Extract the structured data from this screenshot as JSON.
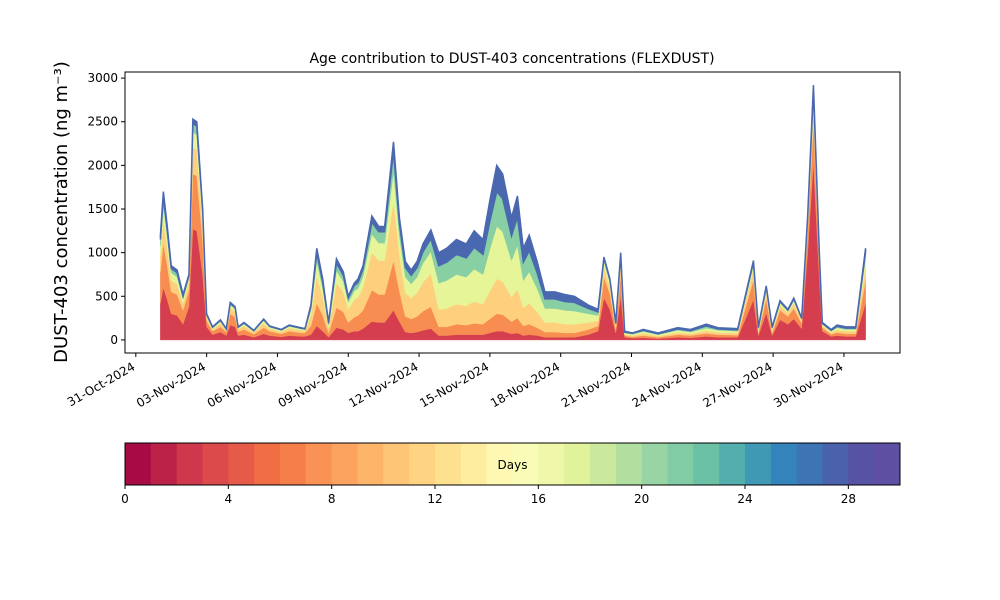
{
  "chart_data": {
    "type": "stacked_area",
    "title": "Age contribution to DUST-403 concentrations (FLEXDUST)",
    "y_label": "DUST-403 concentration (ng m⁻³)",
    "x": [
      "2024-11-01T01:00",
      "2024-11-01T04:00",
      "2024-11-01T08:00",
      "2024-11-01T12:00",
      "2024-11-01T18:00",
      "2024-11-02T00:00",
      "2024-11-02T06:00",
      "2024-11-02T10:00",
      "2024-11-02T14:00",
      "2024-11-02T20:00",
      "2024-11-03T00:00",
      "2024-11-03T06:00",
      "2024-11-03T14:00",
      "2024-11-03T20:00",
      "2024-11-04T00:00",
      "2024-11-04T05:00",
      "2024-11-04T08:00",
      "2024-11-04T14:00",
      "2024-11-05T00:00",
      "2024-11-05T10:00",
      "2024-11-05T16:00",
      "2024-11-06T04:00",
      "2024-11-06T12:00",
      "2024-11-07T00:00",
      "2024-11-07T04:00",
      "2024-11-07T10:00",
      "2024-11-07T16:00",
      "2024-11-07T22:00",
      "2024-11-08T04:00",
      "2024-11-08T12:00",
      "2024-11-08T19:00",
      "2024-11-09T00:00",
      "2024-11-09T06:00",
      "2024-11-09T10:00",
      "2024-11-09T15:00",
      "2024-11-10T00:00",
      "2024-11-10T07:00",
      "2024-11-10T13:00",
      "2024-11-10T22:00",
      "2024-11-11T04:00",
      "2024-11-11T10:00",
      "2024-11-11T16:00",
      "2024-11-11T22:00",
      "2024-11-12T04:00",
      "2024-11-12T12:00",
      "2024-11-12T20:00",
      "2024-11-13T04:00",
      "2024-11-13T14:00",
      "2024-11-14T00:00",
      "2024-11-14T08:00",
      "2024-11-14T17:00",
      "2024-11-15T00:00",
      "2024-11-15T07:00",
      "2024-11-15T13:00",
      "2024-11-15T22:00",
      "2024-11-16T04:00",
      "2024-11-16T10:00",
      "2024-11-16T16:00",
      "2024-11-17T00:00",
      "2024-11-17T08:00",
      "2024-11-17T18:00",
      "2024-11-18T04:00",
      "2024-11-18T14:00",
      "2024-11-19T04:00",
      "2024-11-19T14:00",
      "2024-11-19T20:00",
      "2024-11-20T02:00",
      "2024-11-20T08:00",
      "2024-11-20T13:00",
      "2024-11-20T17:00",
      "2024-11-21T01:00",
      "2024-11-21T12:00",
      "2024-11-22T03:00",
      "2024-11-22T23:00",
      "2024-11-23T12:00",
      "2024-11-24T04:00",
      "2024-11-24T16:00",
      "2024-11-25T12:00",
      "2024-11-26T04:00",
      "2024-11-26T09:00",
      "2024-11-26T17:00",
      "2024-11-26T23:00",
      "2024-11-27T07:00",
      "2024-11-27T15:00",
      "2024-11-27T21:00",
      "2024-11-28T05:00",
      "2024-11-28T11:00",
      "2024-11-28T17:00",
      "2024-11-28T23:00",
      "2024-11-29T02:00",
      "2024-11-29T11:00",
      "2024-11-29T17:00",
      "2024-11-30T02:00",
      "2024-11-30T12:00",
      "2024-11-30T22:00"
    ],
    "series": [
      {
        "color": "#d53e4f",
        "values": [
          420,
          600,
          460,
          300,
          280,
          180,
          380,
          1270,
          1250,
          750,
          150,
          60,
          90,
          50,
          170,
          150,
          50,
          60,
          30,
          70,
          50,
          35,
          50,
          40,
          40,
          60,
          160,
          100,
          30,
          140,
          120,
          80,
          100,
          100,
          130,
          210,
          200,
          200,
          340,
          210,
          90,
          80,
          90,
          110,
          130,
          50,
          50,
          60,
          60,
          60,
          60,
          80,
          100,
          100,
          70,
          80,
          50,
          60,
          50,
          30,
          30,
          30,
          30,
          60,
          100,
          480,
          350,
          80,
          500,
          30,
          20,
          25,
          15,
          30,
          25,
          40,
          30,
          30,
          460,
          50,
          310,
          50,
          230,
          180,
          240,
          130,
          980,
          2040,
          700,
          100,
          40,
          50,
          40,
          40,
          420
        ]
      },
      {
        "color": "#f88d52",
        "values": [
          360,
          510,
          390,
          250,
          240,
          160,
          190,
          630,
          630,
          380,
          70,
          40,
          60,
          40,
          130,
          110,
          45,
          60,
          35,
          70,
          50,
          35,
          50,
          40,
          40,
          100,
          260,
          180,
          50,
          230,
          200,
          120,
          160,
          180,
          210,
          360,
          320,
          320,
          570,
          350,
          180,
          160,
          180,
          220,
          250,
          100,
          100,
          120,
          110,
          130,
          120,
          160,
          200,
          190,
          140,
          170,
          110,
          120,
          90,
          60,
          60,
          50,
          50,
          60,
          60,
          240,
          180,
          40,
          250,
          20,
          15,
          25,
          15,
          30,
          25,
          35,
          30,
          25,
          230,
          30,
          160,
          30,
          110,
          90,
          120,
          60,
          210,
          440,
          150,
          40,
          25,
          35,
          30,
          30,
          260
        ]
      },
      {
        "color": "#fed07e",
        "values": [
          180,
          260,
          200,
          130,
          120,
          80,
          90,
          300,
          300,
          180,
          40,
          20,
          40,
          20,
          70,
          60,
          30,
          40,
          25,
          50,
          30,
          25,
          35,
          30,
          25,
          120,
          320,
          210,
          60,
          280,
          230,
          150,
          200,
          210,
          260,
          430,
          390,
          390,
          680,
          420,
          270,
          240,
          270,
          330,
          380,
          200,
          210,
          230,
          220,
          250,
          230,
          320,
          400,
          380,
          280,
          330,
          210,
          240,
          180,
          110,
          110,
          100,
          100,
          80,
          60,
          110,
          80,
          30,
          120,
          15,
          15,
          25,
          15,
          25,
          20,
          30,
          25,
          25,
          110,
          25,
          70,
          25,
          50,
          40,
          60,
          30,
          100,
          200,
          70,
          25,
          20,
          30,
          30,
          30,
          160
        ]
      },
      {
        "color": "#e6f598",
        "values": [
          120,
          170,
          130,
          90,
          80,
          50,
          50,
          180,
          170,
          100,
          20,
          15,
          20,
          10,
          30,
          30,
          15,
          20,
          10,
          30,
          15,
          15,
          20,
          15,
          15,
          60,
          160,
          100,
          30,
          140,
          120,
          80,
          100,
          100,
          130,
          210,
          200,
          200,
          340,
          210,
          180,
          160,
          180,
          220,
          250,
          300,
          320,
          340,
          330,
          370,
          340,
          480,
          600,
          570,
          420,
          500,
          310,
          360,
          270,
          160,
          160,
          160,
          150,
          100,
          60,
          70,
          50,
          20,
          70,
          15,
          15,
          20,
          15,
          25,
          20,
          30,
          25,
          20,
          60,
          20,
          40,
          20,
          30,
          20,
          30,
          15,
          60,
          120,
          40,
          15,
          15,
          25,
          20,
          20,
          110
        ]
      },
      {
        "color": "#88cfa4",
        "values": [
          70,
          100,
          70,
          50,
          50,
          30,
          30,
          100,
          100,
          60,
          10,
          10,
          15,
          5,
          20,
          20,
          5,
          15,
          5,
          15,
          10,
          5,
          10,
          10,
          5,
          40,
          100,
          70,
          20,
          90,
          70,
          50,
          60,
          70,
          80,
          140,
          130,
          130,
          230,
          140,
          110,
          100,
          110,
          130,
          150,
          200,
          210,
          230,
          220,
          250,
          230,
          320,
          400,
          380,
          280,
          330,
          210,
          240,
          180,
          110,
          110,
          100,
          100,
          60,
          40,
          40,
          30,
          20,
          40,
          10,
          10,
          15,
          10,
          15,
          15,
          25,
          15,
          15,
          30,
          15,
          30,
          15,
          20,
          10,
          20,
          10,
          30,
          60,
          20,
          10,
          10,
          15,
          15,
          15,
          60
        ]
      },
      {
        "color": "#4a68b0",
        "values": [
          50,
          60,
          50,
          30,
          30,
          20,
          10,
          50,
          50,
          30,
          10,
          5,
          5,
          5,
          10,
          10,
          5,
          5,
          5,
          5,
          5,
          5,
          5,
          5,
          5,
          20,
          50,
          40,
          10,
          50,
          40,
          20,
          30,
          40,
          40,
          70,
          60,
          60,
          110,
          70,
          70,
          60,
          70,
          90,
          100,
          150,
          160,
          170,
          160,
          190,
          170,
          240,
          300,
          280,
          210,
          240,
          160,
          180,
          130,
          80,
          80,
          80,
          70,
          40,
          30,
          10,
          10,
          10,
          20,
          10,
          5,
          10,
          10,
          15,
          15,
          20,
          15,
          15,
          20,
          10,
          10,
          10,
          10,
          10,
          10,
          5,
          20,
          60,
          20,
          10,
          10,
          15,
          15,
          15,
          40
        ]
      }
    ],
    "xlim": [
      "2024-10-30T13:00",
      "2024-12-02T09:00"
    ],
    "xticks": [
      {
        "value": "2024-10-31T00:00",
        "label": "31-Oct-2024"
      },
      {
        "value": "2024-11-03T00:00",
        "label": "03-Nov-2024"
      },
      {
        "value": "2024-11-06T00:00",
        "label": "06-Nov-2024"
      },
      {
        "value": "2024-11-09T00:00",
        "label": "09-Nov-2024"
      },
      {
        "value": "2024-11-12T00:00",
        "label": "12-Nov-2024"
      },
      {
        "value": "2024-11-15T00:00",
        "label": "15-Nov-2024"
      },
      {
        "value": "2024-11-18T00:00",
        "label": "18-Nov-2024"
      },
      {
        "value": "2024-11-21T00:00",
        "label": "21-Nov-2024"
      },
      {
        "value": "2024-11-24T00:00",
        "label": "24-Nov-2024"
      },
      {
        "value": "2024-11-27T00:00",
        "label": "27-Nov-2024"
      },
      {
        "value": "2024-11-30T00:00",
        "label": "30-Nov-2024"
      }
    ],
    "ylim": [
      -150,
      3070
    ],
    "yticks": [
      0,
      500,
      1000,
      1500,
      2000,
      2500,
      3000
    ],
    "colorbar": {
      "label": "Days",
      "lim": [
        0,
        30
      ],
      "ticks": [
        0,
        4,
        8,
        12,
        16,
        20,
        24,
        28
      ],
      "colors": [
        "#a80a46",
        "#bc2248",
        "#cf384c",
        "#dd4a4c",
        "#e65a49",
        "#f16d44",
        "#f67e4b",
        "#f99355",
        "#fca45f",
        "#fdb56a",
        "#fdc575",
        "#fed381",
        "#fee18f",
        "#feec9f",
        "#fff8b3",
        "#f8fcb6",
        "#eef8a8",
        "#e0f29a",
        "#cbe99d",
        "#b2df9f",
        "#99d5a4",
        "#81cba5",
        "#6ac1a5",
        "#54aead",
        "#3f99b5",
        "#3484bc",
        "#3d74b3",
        "#4a62ac",
        "#5753a4",
        "#5e4fa2"
      ]
    }
  }
}
